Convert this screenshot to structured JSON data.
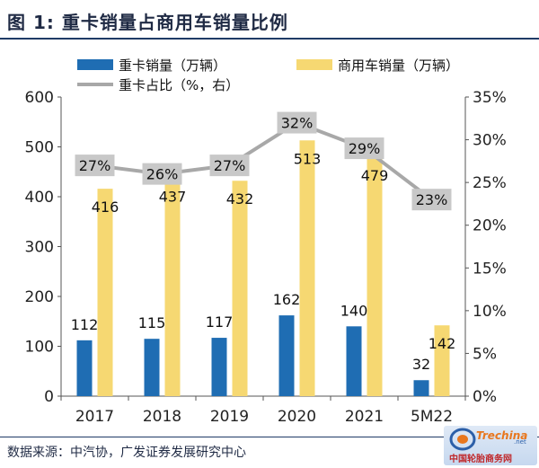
{
  "title": "图 1: 重卡销量占商用车销量比例",
  "source": "数据来源：中汽协，广发证券发展研究中心",
  "watermark": {
    "text_en": "Trechina",
    "text_net": ".net",
    "text_cn": "中国轮胎商务网"
  },
  "colors": {
    "heavy_truck": "#1f6db3",
    "commercial": "#f6d872",
    "share_line": "#a8a8a8",
    "share_label_bg": "#c8c8c8",
    "title": "#1f2a44"
  },
  "chart_data": {
    "type": "bar",
    "categories": [
      "2017",
      "2018",
      "2019",
      "2020",
      "2021",
      "5M22"
    ],
    "series": [
      {
        "name": "重卡销量（万辆）",
        "type": "bar",
        "axis": "left",
        "values": [
          112,
          115,
          117,
          162,
          140,
          32
        ]
      },
      {
        "name": "商用车销量（万辆）",
        "type": "bar",
        "axis": "left",
        "values": [
          416,
          437,
          432,
          513,
          479,
          142
        ]
      },
      {
        "name": "重卡占比（%，右）",
        "type": "line",
        "axis": "right",
        "values": [
          27,
          26,
          27,
          32,
          29,
          23
        ],
        "labels": [
          "27%",
          "26%",
          "27%",
          "32%",
          "29%",
          "23%"
        ]
      }
    ],
    "ylim_left": [
      0,
      600
    ],
    "yticks_left": [
      "0",
      "100",
      "200",
      "300",
      "400",
      "500",
      "600"
    ],
    "ylim_right": [
      0,
      35
    ],
    "yticks_right": [
      "0%",
      "5%",
      "10%",
      "15%",
      "20%",
      "25%",
      "30%",
      "35%"
    ],
    "legend_position": "top",
    "grid": false
  }
}
